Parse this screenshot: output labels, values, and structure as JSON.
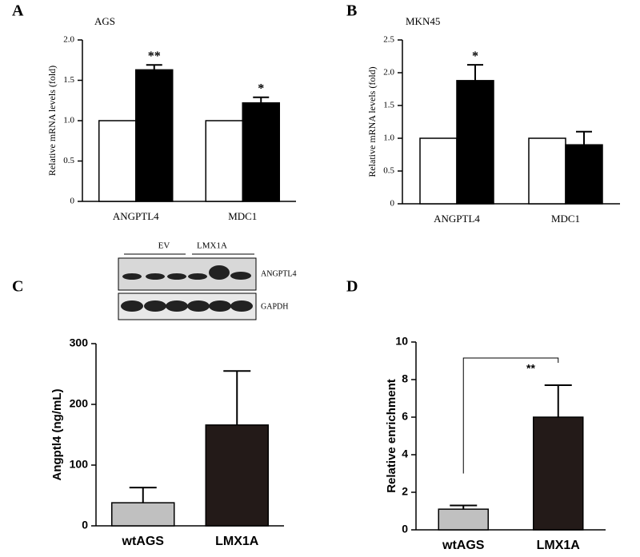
{
  "chart_data": [
    {
      "type": "bar",
      "panel": "A",
      "title": "AGS",
      "y_label": "Relative  mRNA levels  (fold)",
      "categories": [
        "ANGPTL4",
        "MDC1"
      ],
      "series": [
        {
          "color": "#ffffff",
          "values": [
            1,
            1
          ]
        },
        {
          "color": "#000000",
          "values": [
            1.63,
            1.22
          ],
          "errors": [
            0.06,
            0.07
          ]
        }
      ],
      "significance": [
        "**",
        "*"
      ],
      "ylim": [
        0,
        2
      ],
      "yticks": [
        0,
        0.5,
        {
          "value": 1,
          "label": "1.0"
        },
        1.5,
        {
          "value": 2,
          "label": "2.0"
        }
      ]
    },
    {
      "type": "bar",
      "panel": "B",
      "title": "MKN45",
      "y_label": "Relative  mRNA levels  (fold)",
      "categories": [
        "ANGPTL4",
        "MDC1"
      ],
      "series": [
        {
          "color": "#ffffff",
          "values": [
            1,
            1
          ]
        },
        {
          "color": "#000000",
          "values": [
            1.88,
            0.9
          ],
          "errors": [
            0.24,
            0.2
          ]
        }
      ],
      "significance": [
        "*",
        null
      ],
      "ylim": [
        0,
        2.5
      ],
      "yticks": [
        0,
        0.5,
        {
          "value": 1,
          "label": "1.0"
        },
        1.5,
        {
          "value": 2,
          "label": "2.0"
        },
        2.5
      ]
    },
    {
      "type": "bar",
      "panel": "C",
      "y_label": "Angptl4 (ng/mL)",
      "categories": [
        "wtAGS",
        "LMX1A"
      ],
      "values": [
        38,
        166
      ],
      "errors": [
        25,
        89
      ],
      "colors": [
        "#c0c0c0",
        "#231a18"
      ],
      "ylim": [
        0,
        300
      ],
      "yticks": [
        0,
        100,
        200,
        300
      ]
    },
    {
      "type": "bar",
      "panel": "D",
      "y_label": "Relative enrichment",
      "categories": [
        "wtAGS",
        "LMX1A"
      ],
      "values": [
        1.1,
        6.0
      ],
      "errors": [
        0.2,
        1.7
      ],
      "colors": [
        "#c0c0c0",
        "#231a18"
      ],
      "significance": "**",
      "ylim": [
        0,
        10
      ],
      "yticks": [
        0,
        2,
        4,
        6,
        8,
        10
      ]
    }
  ],
  "blot": {
    "groups": [
      "EV",
      "LMX1A"
    ],
    "rows": [
      "ANGPTL4",
      "GAPDH"
    ]
  }
}
